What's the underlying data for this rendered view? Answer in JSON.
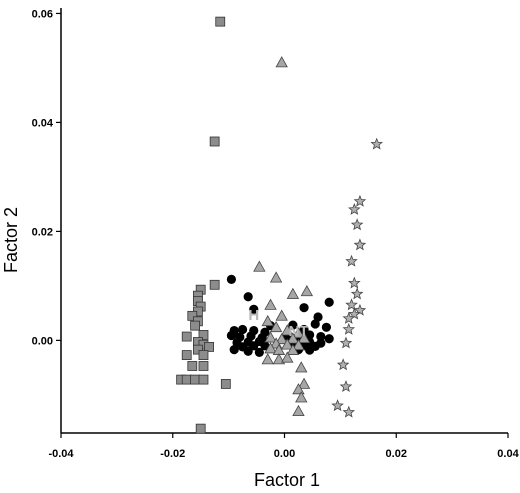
{
  "chart_data": {
    "type": "scatter",
    "xlabel": "Factor 1",
    "ylabel": "Factor 2",
    "xlim": [
      -0.04,
      0.04
    ],
    "ylim": [
      -0.017,
      0.061
    ],
    "x_ticks": [
      -0.04,
      -0.02,
      0.0,
      0.02,
      0.04
    ],
    "x_tick_labels": [
      "-0.04",
      "-0.02",
      "0.00",
      "0.02",
      "0.04"
    ],
    "y_ticks": [
      0.0,
      0.02,
      0.04,
      0.06
    ],
    "y_tick_labels": [
      "0.00",
      "0.02",
      "0.04",
      "0.06"
    ],
    "grid": false,
    "annotations": [
      {
        "text": "H",
        "x": -0.0055,
        "y": 0.0047
      },
      {
        "text": "NT",
        "x": 0.0025,
        "y": 0.0017
      }
    ],
    "series": [
      {
        "marker": "square",
        "color": "#8c8c8c",
        "points": [
          [
            -0.0115,
            0.0585
          ],
          [
            -0.0125,
            0.0365
          ],
          [
            -0.0125,
            0.0102
          ],
          [
            -0.015,
            0.0093
          ],
          [
            -0.0155,
            0.0082
          ],
          [
            -0.0155,
            0.0072
          ],
          [
            -0.015,
            0.0062
          ],
          [
            -0.0155,
            0.0053
          ],
          [
            -0.0165,
            0.0045
          ],
          [
            -0.0155,
            0.0035
          ],
          [
            -0.016,
            0.0027
          ],
          [
            -0.0145,
            0.001
          ],
          [
            -0.0175,
            0.0007
          ],
          [
            -0.0155,
            -0.0003
          ],
          [
            -0.0145,
            -0.0008
          ],
          [
            -0.0135,
            -0.0012
          ],
          [
            -0.0155,
            -0.0017
          ],
          [
            -0.0175,
            -0.0027
          ],
          [
            -0.0145,
            -0.0027
          ],
          [
            -0.0165,
            -0.0047
          ],
          [
            -0.0145,
            -0.0047
          ],
          [
            -0.0185,
            -0.0072
          ],
          [
            -0.0175,
            -0.0072
          ],
          [
            -0.016,
            -0.0072
          ],
          [
            -0.0145,
            -0.0072
          ],
          [
            -0.0105,
            -0.008
          ],
          [
            -0.015,
            -0.0162
          ]
        ]
      },
      {
        "marker": "circle",
        "color": "#000000",
        "points": [
          [
            -0.0095,
            0.0112
          ],
          [
            -0.0065,
            0.008
          ],
          [
            -0.0055,
            0.0057
          ],
          [
            -0.0025,
            0.0027
          ],
          [
            -0.009,
            0.0018
          ],
          [
            -0.0075,
            0.002
          ],
          [
            -0.0055,
            0.0018
          ],
          [
            -0.0035,
            0.0015
          ],
          [
            -0.0095,
            0.0009
          ],
          [
            -0.008,
            0.0006
          ],
          [
            -0.006,
            0.0008
          ],
          [
            -0.004,
            0.0005
          ],
          [
            -0.0085,
            -0.0004
          ],
          [
            -0.0065,
            -0.0003
          ],
          [
            -0.0045,
            -0.0002
          ],
          [
            -0.0075,
            -0.0012
          ],
          [
            -0.0055,
            -0.001
          ],
          [
            -0.0035,
            -0.001
          ],
          [
            -0.009,
            -0.0017
          ],
          [
            -0.0065,
            -0.002
          ],
          [
            -0.0045,
            -0.0022
          ],
          [
            0.0035,
            0.006
          ],
          [
            0.006,
            0.0043
          ],
          [
            0.008,
            0.007
          ],
          [
            0.0015,
            0.0028
          ],
          [
            0.0055,
            0.003
          ],
          [
            0.0075,
            0.0024
          ],
          [
            0.0035,
            0.002
          ],
          [
            0.0005,
            0.0009
          ],
          [
            0.0025,
            0.0008
          ],
          [
            0.0045,
            0.001
          ],
          [
            0.0065,
            0.0007
          ],
          [
            0.008,
            0.0003
          ],
          [
            0.0025,
            -0.0002
          ],
          [
            0.0045,
            -0.0003
          ],
          [
            0.0065,
            -0.0005
          ],
          [
            0.0035,
            -0.001
          ],
          [
            0.0055,
            -0.0011
          ],
          [
            0.0025,
            -0.0017
          ],
          [
            0.0045,
            -0.0018
          ],
          [
            0.0015,
            -0.001
          ]
        ]
      },
      {
        "marker": "triangle",
        "color": "#a6a6a6",
        "points": [
          [
            -0.0005,
            0.051
          ],
          [
            -0.0045,
            0.0135
          ],
          [
            -0.0015,
            0.0115
          ],
          [
            0.0015,
            0.0085
          ],
          [
            0.004,
            0.009
          ],
          [
            -0.0025,
            0.0065
          ],
          [
            -0.0005,
            0.0045
          ],
          [
            -0.003,
            0.0035
          ],
          [
            -0.0015,
            0.0024
          ],
          [
            0.0005,
            0.0018
          ],
          [
            0.0025,
            0.0013
          ],
          [
            -0.0025,
            0.0005
          ],
          [
            -0.0005,
            0.0002
          ],
          [
            0.0015,
            0.0003
          ],
          [
            0.0035,
            0.0004
          ],
          [
            -0.0015,
            -0.0006
          ],
          [
            0.0005,
            -0.0008
          ],
          [
            0.0025,
            -0.0009
          ],
          [
            -0.0025,
            -0.0015
          ],
          [
            -0.001,
            -0.0018
          ],
          [
            0.0015,
            -0.0018
          ],
          [
            -0.003,
            -0.0035
          ],
          [
            -0.001,
            -0.0035
          ],
          [
            0.0005,
            -0.0032
          ],
          [
            0.003,
            -0.005
          ],
          [
            0.0035,
            -0.008
          ],
          [
            0.0025,
            -0.009
          ],
          [
            0.003,
            -0.0105
          ],
          [
            0.0025,
            -0.013
          ]
        ]
      },
      {
        "marker": "star",
        "color": "#b0b0b0",
        "points": [
          [
            0.0165,
            0.036
          ],
          [
            0.0135,
            0.0255
          ],
          [
            0.0125,
            0.024
          ],
          [
            0.013,
            0.0212
          ],
          [
            0.0135,
            0.0175
          ],
          [
            0.012,
            0.0145
          ],
          [
            0.0125,
            0.0105
          ],
          [
            0.013,
            0.0085
          ],
          [
            0.012,
            0.0065
          ],
          [
            0.0135,
            0.0055
          ],
          [
            0.0125,
            0.0048
          ],
          [
            0.0115,
            0.004
          ],
          [
            0.0115,
            0.002
          ],
          [
            0.011,
            -0.0005
          ],
          [
            0.0105,
            -0.0045
          ],
          [
            0.011,
            -0.0085
          ],
          [
            0.0095,
            -0.012
          ],
          [
            0.0115,
            -0.0132
          ]
        ]
      }
    ]
  }
}
